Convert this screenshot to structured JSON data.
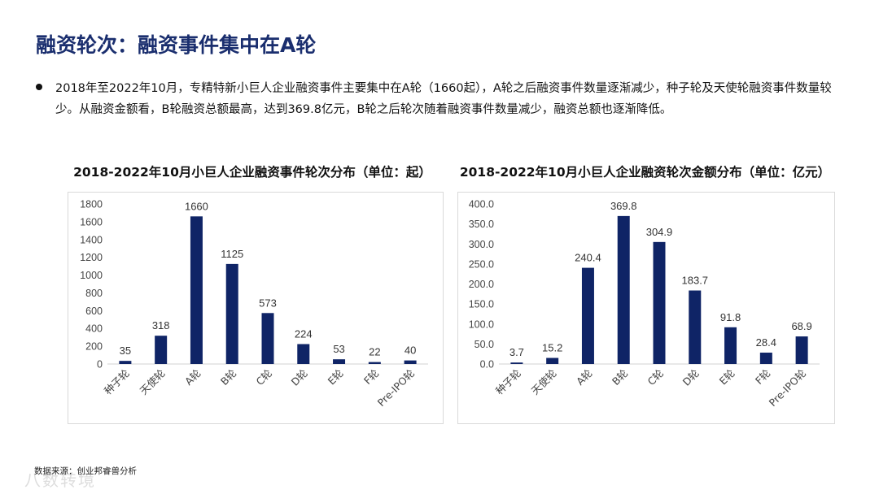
{
  "title": "融资轮次：融资事件集中在A轮",
  "bullet": "2018年至2022年10月，专精特新小巨人企业融资事件主要集中在A轮（1660起），A轮之后融资事件数量逐渐减少，种子轮及天使轮融资事件数量较少。从融资金额看，B轮融资总额最高，达到369.8亿元，B轮之后轮次随着融资事件数量减少，融资总额也逐渐降低。",
  "source": "数据来源：创业邦睿兽分析",
  "watermark": "八数转境",
  "colors": {
    "bar": "#0f2466",
    "title": "#1a2e6e"
  },
  "chart_data": [
    {
      "type": "bar",
      "title": "2018-2022年10月小巨人企业融资事件轮次分布（单位：起）",
      "categories": [
        "种子轮",
        "天使轮",
        "A轮",
        "B轮",
        "C轮",
        "D轮",
        "E轮",
        "F轮",
        "Pre-IPO轮"
      ],
      "values": [
        35,
        318,
        1660,
        1125,
        573,
        224,
        53,
        22,
        40
      ],
      "value_labels": [
        "35",
        "318",
        "1660",
        "1125",
        "573",
        "224",
        "53",
        "22",
        "40"
      ],
      "yticks": [
        "0",
        "200",
        "400",
        "600",
        "800",
        "1000",
        "1200",
        "1400",
        "1600",
        "1800"
      ],
      "ylim": [
        0,
        1800
      ],
      "xlabel": "",
      "ylabel": ""
    },
    {
      "type": "bar",
      "title": "2018-2022年10月小巨人企业融资轮次金额分布（单位：亿元）",
      "categories": [
        "种子轮",
        "天使轮",
        "A轮",
        "B轮",
        "C轮",
        "D轮",
        "E轮",
        "F轮",
        "Pre-IPO轮"
      ],
      "values": [
        3.7,
        15.2,
        240.4,
        369.8,
        304.9,
        183.7,
        91.8,
        28.4,
        68.9
      ],
      "value_labels": [
        "3.7",
        "15.2",
        "240.4",
        "369.8",
        "304.9",
        "183.7",
        "91.8",
        "28.4",
        "68.9"
      ],
      "yticks": [
        "0.0",
        "50.0",
        "100.0",
        "150.0",
        "200.0",
        "250.0",
        "300.0",
        "350.0",
        "400.0"
      ],
      "ylim": [
        0,
        400
      ],
      "xlabel": "",
      "ylabel": ""
    }
  ]
}
